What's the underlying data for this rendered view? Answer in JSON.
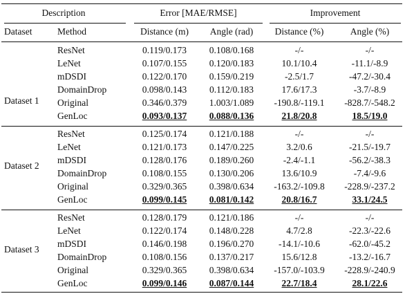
{
  "header": {
    "description": "Description",
    "error": "Error [MAE/RMSE]",
    "improvement": "Improvement",
    "dataset": "Dataset",
    "method": "Method",
    "err_distance": "Distance (m)",
    "err_angle": "Angle (rad)",
    "imp_distance": "Distance (%)",
    "imp_angle": "Angle (%)"
  },
  "groups": [
    {
      "dataset": "Dataset 1",
      "rows": [
        {
          "method": "ResNet",
          "dist": "0.119/0.173",
          "angle": "0.108/0.168",
          "imp_dist": "-/-",
          "imp_angle": "-/-",
          "best": false
        },
        {
          "method": "LeNet",
          "dist": "0.107/0.155",
          "angle": "0.120/0.183",
          "imp_dist": "10.1/10.4",
          "imp_angle": "-11.1/-8.9",
          "best": false
        },
        {
          "method": "mDSDI",
          "dist": "0.122/0.170",
          "angle": "0.159/0.219",
          "imp_dist": "-2.5/1.7",
          "imp_angle": "-47.2/-30.4",
          "best": false
        },
        {
          "method": "DomainDrop",
          "dist": "0.098/0.143",
          "angle": "0.112/0.183",
          "imp_dist": "17.6/17.3",
          "imp_angle": "-3.7/-8.9",
          "best": false
        },
        {
          "method": "Original",
          "dist": "0.346/0.379",
          "angle": "1.003/1.089",
          "imp_dist": "-190.8/-119.1",
          "imp_angle": "-828.7/-548.2",
          "best": false
        },
        {
          "method": "GenLoc",
          "dist": "0.093/0.137",
          "angle": "0.088/0.136",
          "imp_dist": "21.8/20.8",
          "imp_angle": "18.5/19.0",
          "best": true
        }
      ]
    },
    {
      "dataset": "Dataset 2",
      "rows": [
        {
          "method": "ResNet",
          "dist": "0.125/0.174",
          "angle": "0.121/0.188",
          "imp_dist": "-/-",
          "imp_angle": "-/-",
          "best": false
        },
        {
          "method": "LeNet",
          "dist": "0.121/0.173",
          "angle": "0.147/0.225",
          "imp_dist": "3.2/0.6",
          "imp_angle": "-21.5/-19.7",
          "best": false
        },
        {
          "method": "mDSDI",
          "dist": "0.128/0.176",
          "angle": "0.189/0.260",
          "imp_dist": "-2.4/-1.1",
          "imp_angle": "-56.2/-38.3",
          "best": false
        },
        {
          "method": "DomainDrop",
          "dist": "0.108/0.155",
          "angle": "0.130/0.206",
          "imp_dist": "13.6/10.9",
          "imp_angle": "-7.4/-9.6",
          "best": false
        },
        {
          "method": "Original",
          "dist": "0.329/0.365",
          "angle": "0.398/0.634",
          "imp_dist": "-163.2/-109.8",
          "imp_angle": "-228.9/-237.2",
          "best": false
        },
        {
          "method": "GenLoc",
          "dist": "0.099/0.145",
          "angle": "0.081/0.142",
          "imp_dist": "20.8/16.7",
          "imp_angle": "33.1/24.5",
          "best": true
        }
      ]
    },
    {
      "dataset": "Dataset 3",
      "rows": [
        {
          "method": "ResNet",
          "dist": "0.128/0.179",
          "angle": "0.121/0.186",
          "imp_dist": "-/-",
          "imp_angle": "-/-",
          "best": false
        },
        {
          "method": "LeNet",
          "dist": "0.122/0.174",
          "angle": "0.148/0.228",
          "imp_dist": "4.7/2.8",
          "imp_angle": "-22.3/-22.6",
          "best": false
        },
        {
          "method": "mDSDI",
          "dist": "0.146/0.198",
          "angle": "0.196/0.270",
          "imp_dist": "-14.1/-10.6",
          "imp_angle": "-62.0/-45.2",
          "best": false
        },
        {
          "method": "DomainDrop",
          "dist": "0.108/0.156",
          "angle": "0.137/0.217",
          "imp_dist": "15.6/12.8",
          "imp_angle": "-13.2/-16.7",
          "best": false
        },
        {
          "method": "Original",
          "dist": "0.329/0.365",
          "angle": "0.398/0.634",
          "imp_dist": "-157.0/-103.9",
          "imp_angle": "-228.9/-240.9",
          "best": false
        },
        {
          "method": "GenLoc",
          "dist": "0.099/0.146",
          "angle": "0.087/0.144",
          "imp_dist": "22.7/18.4",
          "imp_angle": "28.1/22.6",
          "best": true
        }
      ]
    }
  ]
}
